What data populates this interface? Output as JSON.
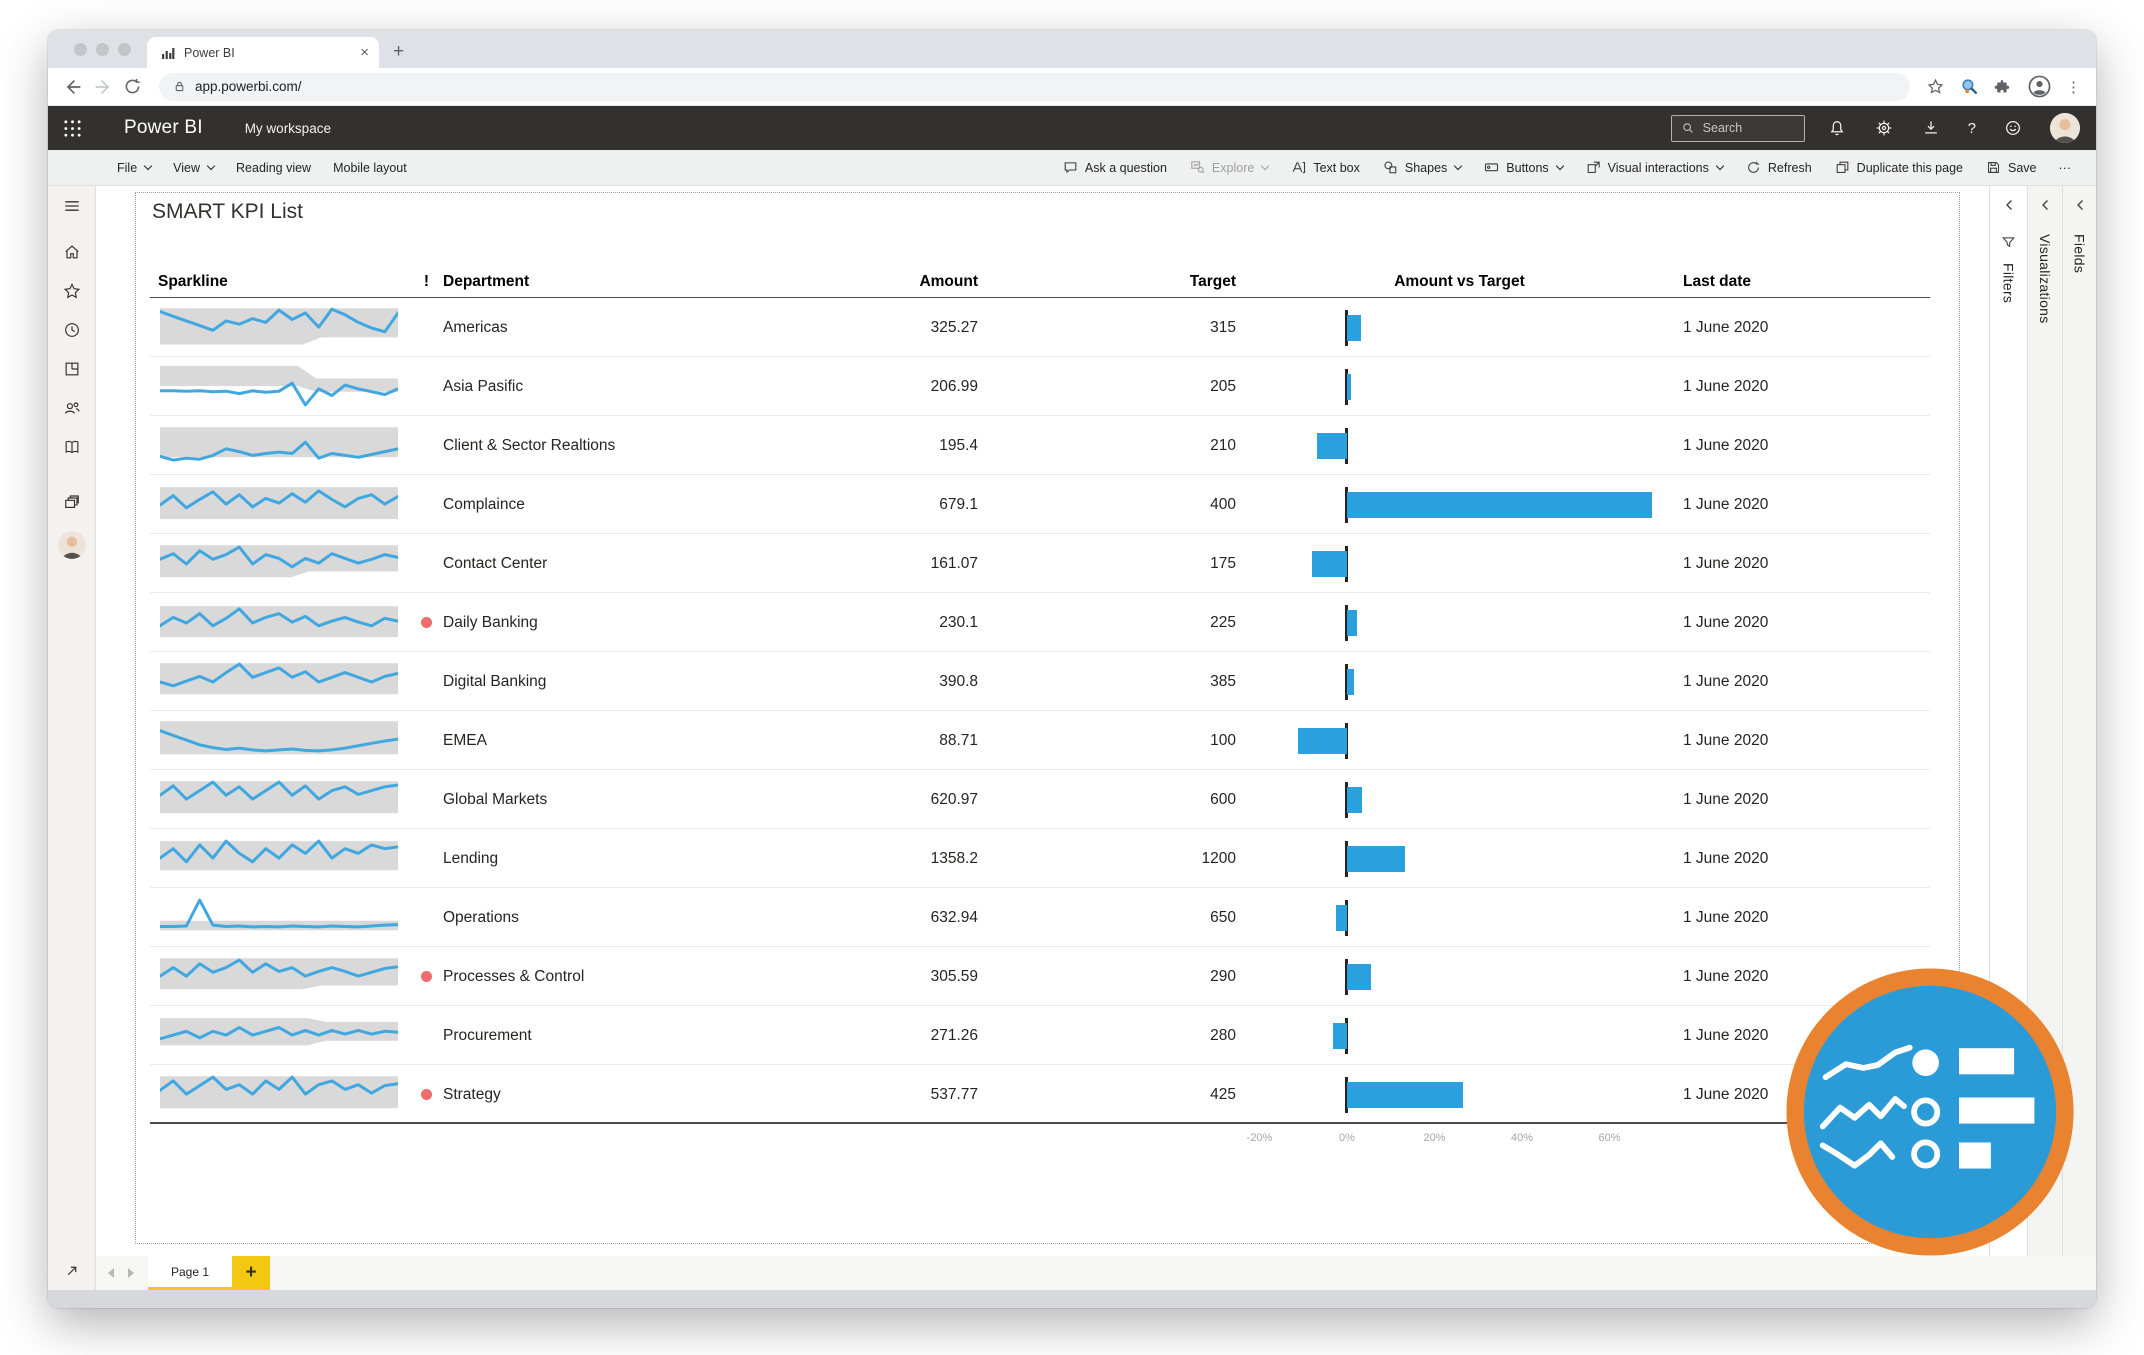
{
  "browser": {
    "tab_title": "Power BI",
    "url": "app.powerbi.com/",
    "new_tab": "+",
    "close_tab": "×",
    "more_menu": "⋮"
  },
  "app_header": {
    "brand": "Power BI",
    "workspace": "My workspace",
    "search_placeholder": "Search",
    "help": "?"
  },
  "toolbar": {
    "items_left": [
      {
        "label": "File"
      },
      {
        "label": "View"
      },
      {
        "label": "Reading view"
      },
      {
        "label": "Mobile layout"
      }
    ],
    "items_right": [
      {
        "label": "Ask a question"
      },
      {
        "label": "Explore"
      },
      {
        "label": "Text box"
      },
      {
        "label": "Shapes"
      },
      {
        "label": "Buttons"
      },
      {
        "label": "Visual interactions"
      },
      {
        "label": "Refresh"
      },
      {
        "label": "Duplicate this page"
      },
      {
        "label": "Save"
      },
      {
        "label": "···"
      }
    ]
  },
  "report": {
    "title": "SMART KPI List",
    "columns": [
      "Sparkline",
      "!",
      "Department",
      "Amount",
      "Target",
      "Amount vs Target",
      "Last date"
    ],
    "axis": [
      {
        "label": "-20%",
        "value": -20
      },
      {
        "label": "0%",
        "value": 0
      },
      {
        "label": "20%",
        "value": 20
      },
      {
        "label": "40%",
        "value": 40
      },
      {
        "label": "60%",
        "value": 60
      }
    ],
    "rows": [
      {
        "department": "Americas",
        "amount": "325.27",
        "target": "315",
        "last_date": "1 June 2020",
        "alert": false,
        "variance_pct": 3.26,
        "spark": [
          8.5,
          7.5,
          6.5,
          5.5,
          4.5,
          6.5,
          5.8,
          7,
          6.2,
          8.8,
          6.8,
          8.2,
          5.2,
          9,
          7.8,
          6.2,
          5,
          4.2,
          8.2
        ],
        "band": [
          9.2,
          1.5,
          9.2,
          3,
          0.6
        ]
      },
      {
        "department": "Asia Pasific",
        "amount": "206.99",
        "target": "205",
        "last_date": "1 June 2020",
        "alert": false,
        "variance_pct": 0.97,
        "spark": [
          4.2,
          4.2,
          4.1,
          4.2,
          4,
          4.1,
          3.6,
          4.2,
          3.9,
          4.1,
          5.8,
          1.2,
          4.6,
          3.2,
          5.4,
          4.6,
          4,
          3.4,
          4.6
        ],
        "band": [
          9.5,
          5.2,
          6.8,
          4,
          0.58
        ]
      },
      {
        "department": "Client & Sector Realtions",
        "amount": "195.4",
        "target": "210",
        "last_date": "1 June 2020",
        "alert": false,
        "variance_pct": -6.95,
        "spark": [
          2.8,
          2,
          2.4,
          2.2,
          3,
          4.4,
          3.8,
          3,
          3.4,
          3.7,
          3.4,
          5.8,
          2.4,
          3.4,
          3,
          2.6,
          3.2,
          3.8,
          4.4
        ],
        "band": [
          9,
          2.6,
          9,
          2.6,
          0.5
        ]
      },
      {
        "department": "Complaince",
        "amount": "679.1",
        "target": "400",
        "last_date": "1 June 2020",
        "alert": false,
        "variance_pct": 69.78,
        "spark": [
          5,
          7,
          4.4,
          6.2,
          7.8,
          5.2,
          7.2,
          4.6,
          6.4,
          5.4,
          7.4,
          5.6,
          8,
          6.2,
          4.6,
          6.4,
          7.2,
          5.2,
          6.8
        ],
        "band": [
          8.8,
          2,
          8.8,
          2,
          0.5
        ]
      },
      {
        "department": "Contact Center",
        "amount": "161.07",
        "target": "175",
        "last_date": "1 June 2020",
        "alert": false,
        "variance_pct": -7.96,
        "spark": [
          6,
          7.2,
          5,
          7.8,
          6,
          7,
          8.6,
          5,
          7,
          6.2,
          4.4,
          6.2,
          5.2,
          7.2,
          6.2,
          5.2,
          6,
          7,
          6.4
        ],
        "band": [
          9,
          2.2,
          9,
          3.4,
          0.55
        ]
      },
      {
        "department": "Daily Banking",
        "amount": "230.1",
        "target": "225",
        "last_date": "1 June 2020",
        "alert": true,
        "variance_pct": 2.27,
        "spark": [
          4.4,
          6.2,
          5,
          7,
          4.4,
          6,
          8,
          5,
          6.2,
          7,
          5.2,
          6.4,
          4.4,
          5.4,
          6.2,
          5.2,
          4.4,
          6,
          5.4
        ],
        "band": [
          8.6,
          2,
          8.6,
          2,
          0.5
        ]
      },
      {
        "department": "Digital Banking",
        "amount": "390.8",
        "target": "385",
        "last_date": "1 June 2020",
        "alert": false,
        "variance_pct": 1.51,
        "spark": [
          5,
          4.2,
          5.2,
          6.2,
          5,
          7,
          8.8,
          6,
          7,
          8,
          6,
          7.2,
          5,
          6,
          7,
          6,
          5,
          6.2,
          6.8
        ],
        "band": [
          9,
          2.4,
          9,
          2.4,
          0.5
        ]
      },
      {
        "department": "EMEA",
        "amount": "88.71",
        "target": "100",
        "last_date": "1 June 2020",
        "alert": false,
        "variance_pct": -11.29,
        "spark": [
          7.2,
          6.2,
          5.2,
          4.2,
          3.6,
          3.2,
          3.5,
          3.1,
          2.9,
          3.1,
          3.3,
          3,
          2.9,
          3.1,
          3.5,
          4,
          4.5,
          5,
          5.4
        ],
        "band": [
          9.2,
          2.2,
          9.2,
          2.2,
          0.5
        ]
      },
      {
        "department": "Global Markets",
        "amount": "620.97",
        "target": "600",
        "last_date": "1 June 2020",
        "alert": false,
        "variance_pct": 3.5,
        "spark": [
          6,
          8,
          5.2,
          7,
          8.8,
          6,
          7.8,
          5.2,
          7,
          8.8,
          6,
          8,
          5.2,
          7,
          7.8,
          6.2,
          7,
          7.8,
          8.2
        ],
        "band": [
          9,
          2.2,
          9,
          2.2,
          0.5
        ]
      },
      {
        "department": "Lending",
        "amount": "1358.2",
        "target": "1200",
        "last_date": "1 June 2020",
        "alert": false,
        "variance_pct": 13.18,
        "spark": [
          5.2,
          7.2,
          4.4,
          8,
          5.2,
          8.8,
          6.2,
          4.4,
          7.2,
          5.2,
          8,
          6.2,
          8.8,
          5.2,
          7.2,
          6.2,
          8,
          7.2,
          7.6
        ],
        "band": [
          8.8,
          2.6,
          8.8,
          2.6,
          0.5
        ]
      },
      {
        "department": "Operations",
        "amount": "632.94",
        "target": "650",
        "last_date": "1 June 2020",
        "alert": false,
        "variance_pct": -2.62,
        "spark": [
          3.2,
          3.2,
          3.3,
          8.8,
          3.5,
          3.2,
          3.3,
          3.1,
          3.2,
          3.1,
          3.3,
          3.2,
          3.1,
          3.3,
          3.2,
          3.1,
          3.3,
          3.5,
          3.6
        ],
        "band": [
          4.4,
          2.4,
          4.4,
          2.4,
          0.5
        ]
      },
      {
        "department": "Processes & Control",
        "amount": "305.59",
        "target": "290",
        "last_date": "1 June 2020",
        "alert": true,
        "variance_pct": 5.38,
        "spark": [
          5.2,
          7,
          5.2,
          7.8,
          6,
          7,
          8.6,
          6,
          7.8,
          6.2,
          7,
          5.2,
          6.2,
          7,
          6.2,
          5.2,
          6,
          6.8,
          7.2
        ],
        "band": [
          9,
          2.4,
          9,
          3.2,
          0.6
        ]
      },
      {
        "department": "Procurement",
        "amount": "271.26",
        "target": "280",
        "last_date": "1 June 2020",
        "alert": false,
        "variance_pct": -3.12,
        "spark": [
          4.4,
          5.2,
          6,
          4.6,
          6,
          5.2,
          6.8,
          5.2,
          6,
          6.8,
          5.2,
          6.2,
          5.2,
          6.2,
          5.4,
          6.2,
          5.4,
          6,
          5.8
        ],
        "band": [
          8.8,
          3,
          8,
          4,
          0.62
        ]
      },
      {
        "department": "Strategy",
        "amount": "537.77",
        "target": "425",
        "last_date": "1 June 2020",
        "alert": true,
        "variance_pct": 26.53,
        "spark": [
          6,
          8,
          5.2,
          7,
          8.8,
          6.2,
          7.2,
          5.2,
          8,
          6.2,
          8.8,
          5.2,
          7.2,
          8,
          6.2,
          7.2,
          5.4,
          7,
          7.4
        ],
        "band": [
          9,
          2.2,
          9,
          2.2,
          0.5
        ]
      }
    ]
  },
  "panels": {
    "filters": "Filters",
    "visualizations": "Visualizations",
    "fields": "Fields"
  },
  "page_bar": {
    "page_label": "Page 1",
    "add_page": "+"
  },
  "colors": {
    "bar_blue": "#2AA0DF",
    "spark_blue": "#41A7E0",
    "band_gray": "#D9D9D9",
    "alert_red": "#EE6B6E",
    "accent_yellow": "#F2C811",
    "logo_blue": "#2B9BD7",
    "logo_orange": "#E9832F",
    "header_dark": "#323130"
  }
}
